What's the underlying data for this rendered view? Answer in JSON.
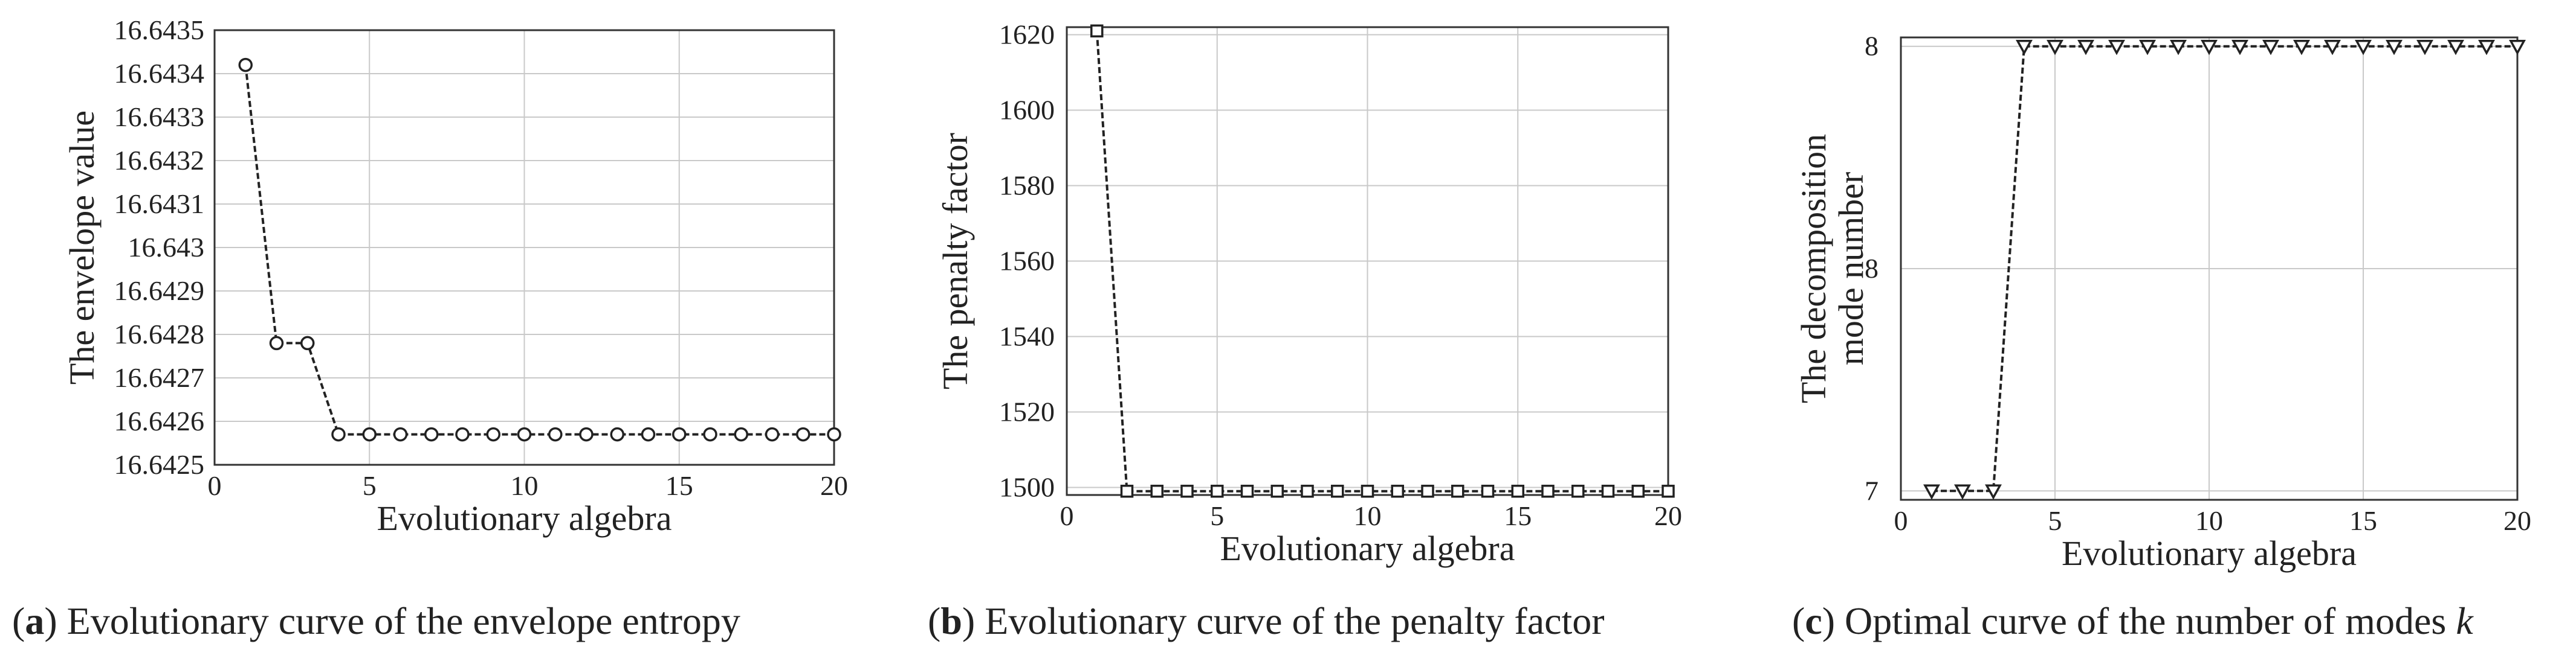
{
  "chart_data": [
    {
      "type": "line",
      "ylabel": "The envelope value",
      "xlabel": "Evolutionary algebra",
      "xlim": [
        0,
        20
      ],
      "ylim": [
        16.6425,
        16.6435
      ],
      "xticks": [
        "0",
        "5",
        "10",
        "15",
        "20"
      ],
      "yticks": [
        "16.6425",
        "16.6426",
        "16.6427",
        "16.6428",
        "16.6429",
        "16.643",
        "16.6431",
        "16.6432",
        "16.6433",
        "16.6434",
        "16.6435"
      ],
      "marker": "circle",
      "grid": true,
      "x": [
        1,
        2,
        3,
        4,
        5,
        6,
        7,
        8,
        9,
        10,
        11,
        12,
        13,
        14,
        15,
        16,
        17,
        18,
        19,
        20
      ],
      "values": [
        16.64342,
        16.64278,
        16.64278,
        16.64257,
        16.64257,
        16.64257,
        16.64257,
        16.64257,
        16.64257,
        16.64257,
        16.64257,
        16.64257,
        16.64257,
        16.64257,
        16.64257,
        16.64257,
        16.64257,
        16.64257,
        16.64257,
        16.64257
      ],
      "caption": {
        "letter": "a",
        "text": " Evolutionary curve of the envelope entropy"
      }
    },
    {
      "type": "line",
      "ylabel": "The penalty factor",
      "xlabel": "Evolutionary algebra",
      "xlim": [
        0,
        20
      ],
      "ylim": [
        1498,
        1622
      ],
      "xticks": [
        "0",
        "5",
        "10",
        "15",
        "20"
      ],
      "yticks": [
        "1500",
        "1520",
        "1540",
        "1560",
        "1580",
        "1600",
        "1620"
      ],
      "marker": "square",
      "grid": true,
      "x": [
        1,
        2,
        3,
        4,
        5,
        6,
        7,
        8,
        9,
        10,
        11,
        12,
        13,
        14,
        15,
        16,
        17,
        18,
        19,
        20
      ],
      "values": [
        1621,
        1499,
        1499,
        1499,
        1499,
        1499,
        1499,
        1499,
        1499,
        1499,
        1499,
        1499,
        1499,
        1499,
        1499,
        1499,
        1499,
        1499,
        1499,
        1499
      ],
      "caption": {
        "letter": "b",
        "text": " Evolutionary curve of the penalty factor"
      }
    },
    {
      "type": "line",
      "ylabel_lines": [
        "The decomposition",
        "mode number"
      ],
      "xlabel": "Evolutionary algebra",
      "xlim": [
        0,
        20
      ],
      "ylim": [
        6.98,
        8.02
      ],
      "xticks": [
        "0",
        "5",
        "10",
        "15",
        "20"
      ],
      "yticks": [
        {
          "value": 7,
          "label": "7"
        },
        {
          "value": 7.5,
          "label": "8"
        },
        {
          "value": 8,
          "label": "8"
        }
      ],
      "marker": "triangle-down",
      "grid": true,
      "x": [
        1,
        2,
        3,
        4,
        5,
        6,
        7,
        8,
        9,
        10,
        11,
        12,
        13,
        14,
        15,
        16,
        17,
        18,
        19,
        20
      ],
      "values": [
        7,
        7,
        7,
        8,
        8,
        8,
        8,
        8,
        8,
        8,
        8,
        8,
        8,
        8,
        8,
        8,
        8,
        8,
        8,
        8
      ],
      "caption": {
        "letter": "c",
        "text": " Optimal curve of the number of modes ",
        "italic": "k"
      }
    }
  ]
}
